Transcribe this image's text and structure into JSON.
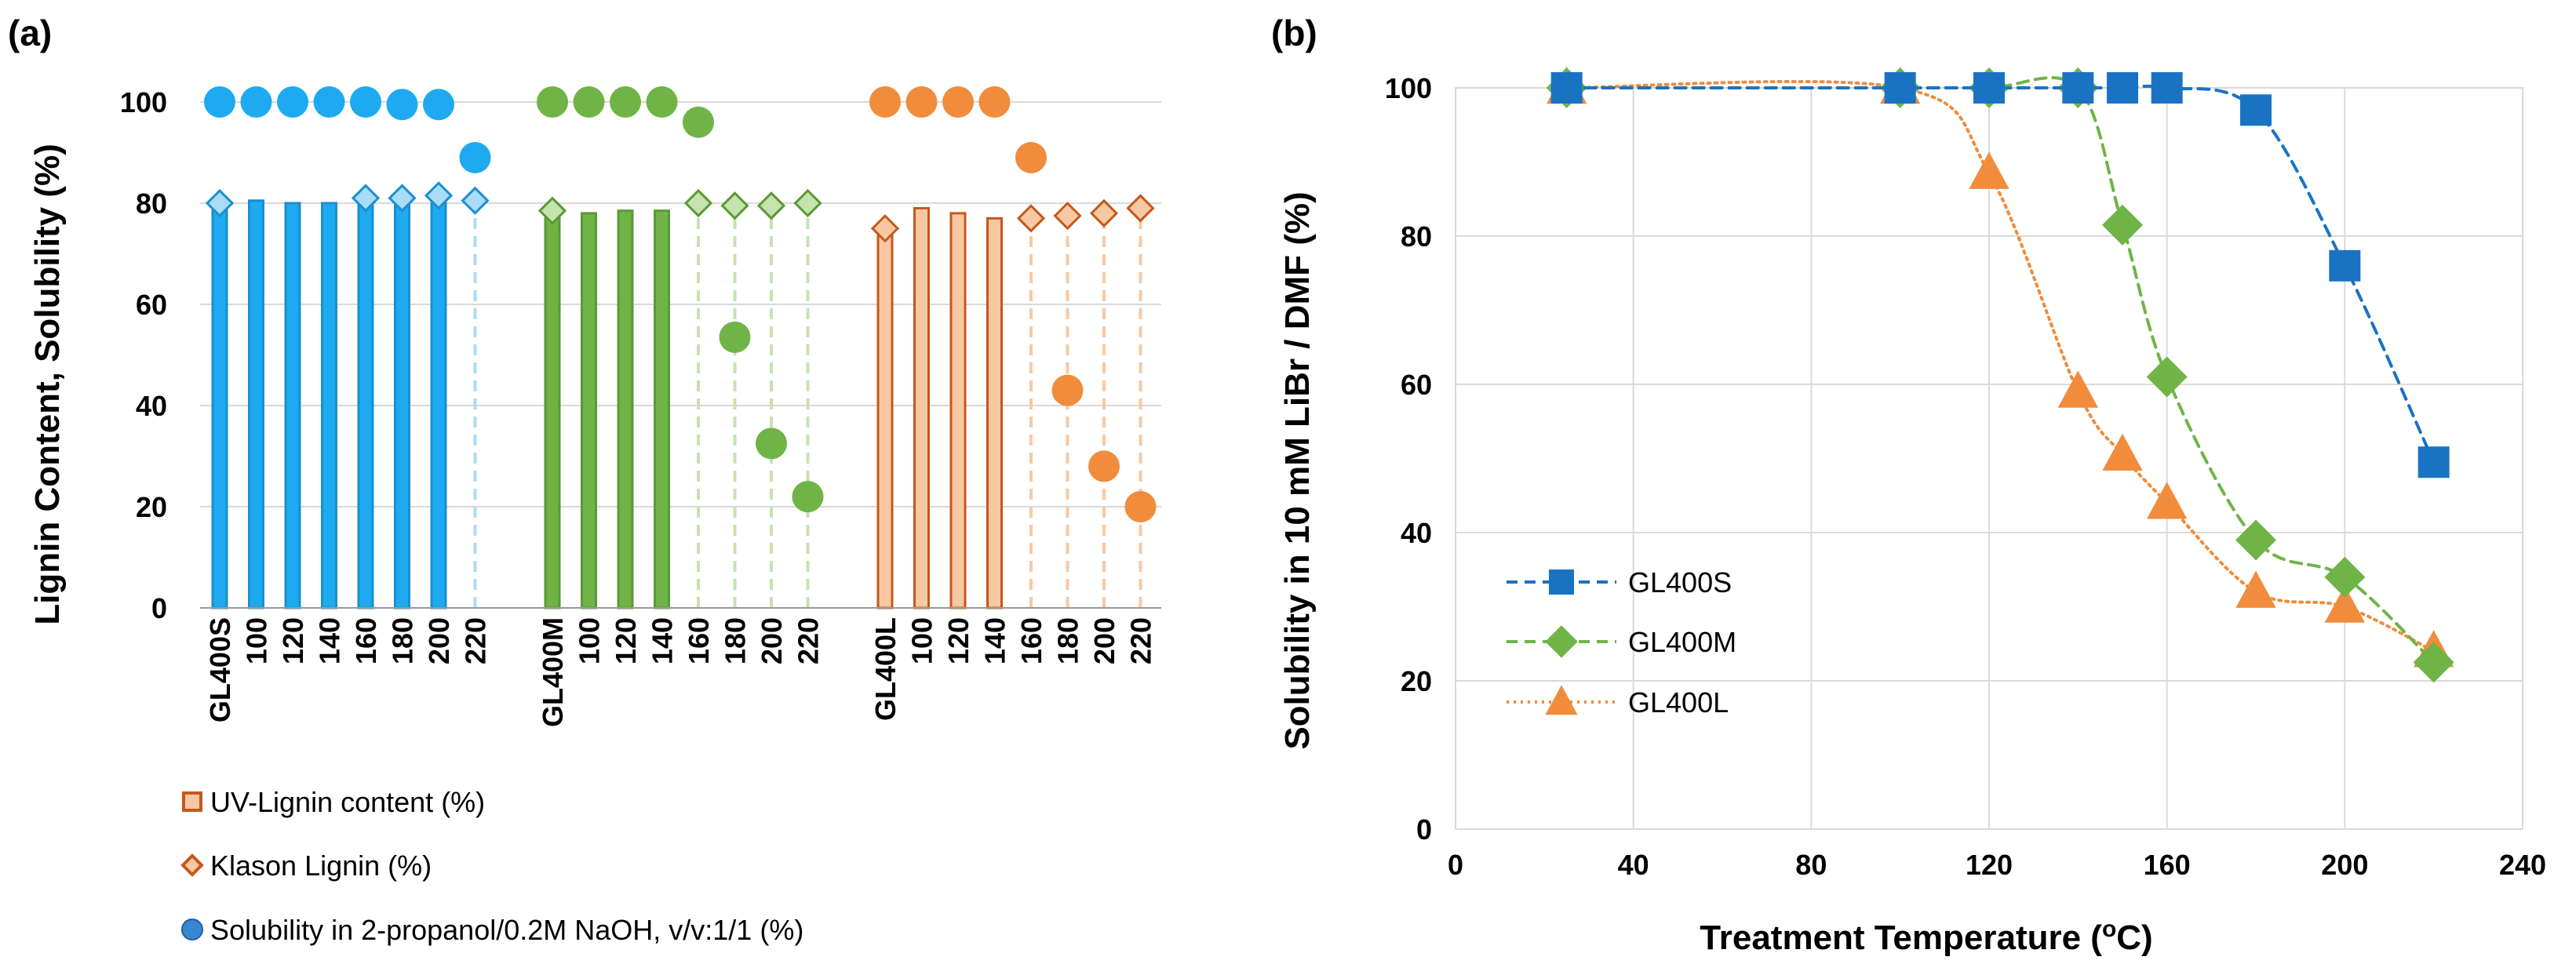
{
  "chart_data": [
    {
      "panel": "(a)",
      "type": "bar",
      "ylabel": "Lignin Content, Solubility (%)",
      "ylim": [
        0,
        100
      ],
      "yticks": [
        0,
        20,
        40,
        60,
        80,
        100
      ],
      "grid": true,
      "legend_position": "bottom-left",
      "legend": [
        {
          "label": "UV-Lignin content (%)",
          "marker": "square"
        },
        {
          "label": "Klason Lignin (%)",
          "marker": "diamond"
        },
        {
          "label": "Solubility in 2-propanol/0.2M NaOH, v/v:1/1 (%)",
          "marker": "circle"
        }
      ],
      "groups": [
        {
          "name": "GL400S",
          "color": "#1eaaf1",
          "edge": "#1a8fd0",
          "light": "#a9dcf6",
          "ticks": [
            "GL400S",
            "100",
            "120",
            "140",
            "160",
            "180",
            "200",
            "220"
          ],
          "uv_lignin": [
            80,
            80.5,
            80,
            80,
            80,
            80,
            80,
            null
          ],
          "klason": [
            80,
            null,
            null,
            null,
            81,
            81,
            81.5,
            80.5
          ],
          "solubility": [
            100,
            100,
            100,
            100,
            100,
            99.5,
            99.5,
            89
          ]
        },
        {
          "name": "GL400M",
          "color": "#70b447",
          "edge": "#5a9a36",
          "light": "#c5e3ae",
          "ticks": [
            "GL400M",
            "100",
            "120",
            "140",
            "160",
            "180",
            "200",
            "220"
          ],
          "uv_lignin": [
            78,
            78,
            78.5,
            78.5,
            null,
            null,
            null,
            null
          ],
          "klason": [
            78.5,
            null,
            null,
            null,
            80,
            79.5,
            79.5,
            80
          ],
          "solubility": [
            100,
            100,
            100,
            100,
            96,
            53.5,
            32.5,
            22
          ]
        },
        {
          "name": "GL400L",
          "color": "#f08c3c",
          "edge": "#c4581d",
          "light": "#f8c8a2",
          "ticks": [
            "GL400L",
            "100",
            "120",
            "140",
            "160",
            "180",
            "200",
            "220"
          ],
          "uv_lignin": [
            75,
            79,
            78,
            77,
            null,
            null,
            null,
            null
          ],
          "klason": [
            75,
            null,
            null,
            null,
            77,
            77.5,
            78,
            79
          ],
          "solubility": [
            100,
            100,
            100,
            100,
            89,
            43,
            28,
            20
          ]
        }
      ]
    },
    {
      "panel": "(b)",
      "type": "line",
      "xlabel": "Treatment Temperature (",
      "xlabel_sup": "o",
      "xlabel_tail": "C)",
      "ylabel": "Solubility in 10 mM LiBr / DMF (%)",
      "xlim": [
        0,
        240
      ],
      "ylim": [
        0,
        100
      ],
      "xticks": [
        0,
        40,
        80,
        120,
        160,
        200,
        240
      ],
      "yticks": [
        0,
        20,
        40,
        60,
        80,
        100
      ],
      "grid": true,
      "legend_position": "center-left",
      "series": [
        {
          "name": "GL400S",
          "color": "#1a73c2",
          "marker": "square",
          "line": "dashed",
          "x": [
            25,
            100,
            120,
            140,
            150,
            160,
            180,
            200,
            220
          ],
          "y": [
            100,
            100,
            100,
            100,
            100,
            100,
            97,
            76,
            49.5
          ]
        },
        {
          "name": "GL400M",
          "color": "#70b447",
          "marker": "diamond",
          "line": "dashed",
          "x": [
            25,
            100,
            120,
            140,
            150,
            160,
            180,
            200,
            220
          ],
          "y": [
            100,
            100,
            100,
            100,
            81.5,
            61,
            39,
            34,
            22.5
          ]
        },
        {
          "name": "GL400L",
          "color": "#f08c3c",
          "marker": "triangle",
          "line": "dotted",
          "x": [
            25,
            100,
            120,
            140,
            150,
            160,
            180,
            200,
            220
          ],
          "y": [
            100,
            100,
            88.5,
            59,
            50.5,
            44,
            32,
            30,
            24
          ]
        }
      ]
    }
  ]
}
